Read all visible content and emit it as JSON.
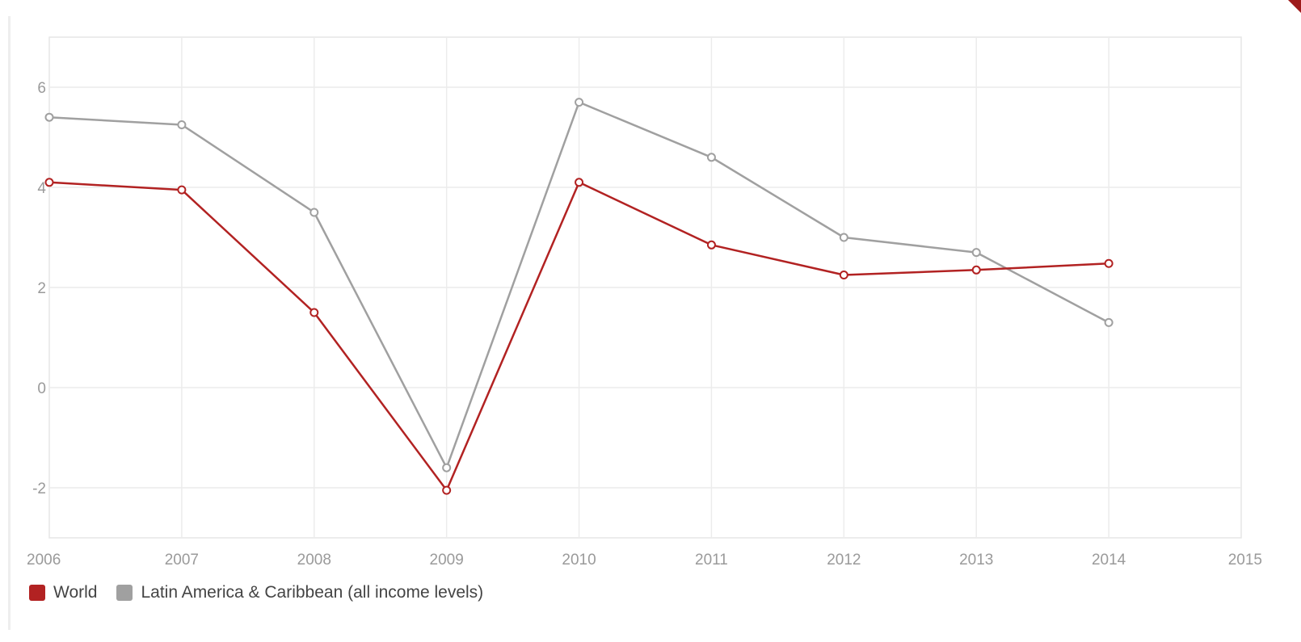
{
  "chart_data": {
    "type": "line",
    "x": [
      2006,
      2007,
      2008,
      2009,
      2010,
      2011,
      2012,
      2013,
      2014
    ],
    "x_ticks": [
      "2006",
      "2007",
      "2008",
      "2009",
      "2010",
      "2011",
      "2012",
      "2013",
      "2014",
      "2015"
    ],
    "xlim": [
      2006,
      2015
    ],
    "y_ticks": [
      "-2",
      "0",
      "2",
      "4",
      "6"
    ],
    "ylim": [
      -3,
      7
    ],
    "grid": true,
    "legend_position": "bottom-left",
    "series": [
      {
        "name": "World",
        "color": "#b22222",
        "values": [
          4.1,
          3.95,
          1.5,
          -2.05,
          4.1,
          2.85,
          2.25,
          2.35,
          2.48
        ]
      },
      {
        "name": "Latin America & Caribbean (all income levels)",
        "color": "#a0a0a0",
        "values": [
          5.4,
          5.25,
          3.5,
          -1.6,
          5.7,
          4.6,
          3.0,
          2.7,
          1.3
        ]
      }
    ]
  }
}
